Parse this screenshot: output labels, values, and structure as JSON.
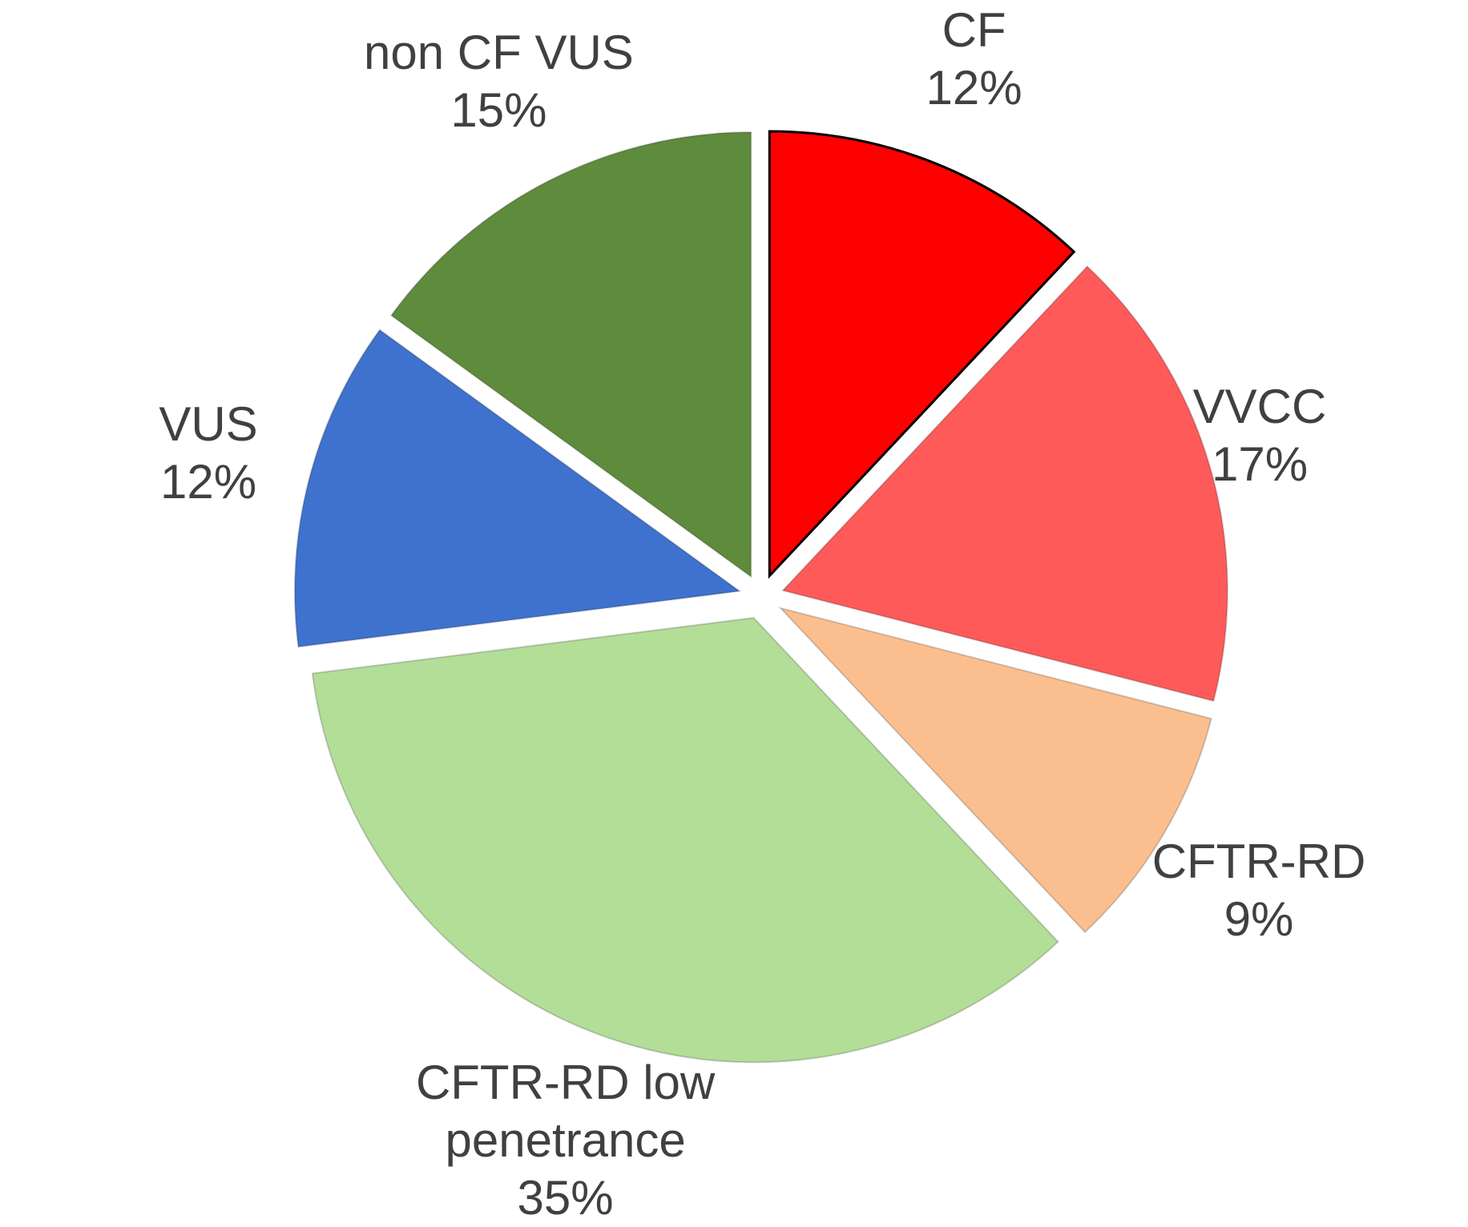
{
  "chart_data": {
    "type": "pie",
    "categories": [
      "CF",
      "VVCC",
      "CFTR-RD",
      "CFTR-RD low penetrance",
      "VUS",
      "non CF VUS"
    ],
    "values": [
      12,
      17,
      9,
      35,
      12,
      15
    ],
    "value_labels": [
      "12%",
      "17%",
      "9%",
      "35%",
      "12%",
      "15%"
    ],
    "colors": [
      "#ff0000",
      "#ff5a5a",
      "#fbbf8f",
      "#b2de98",
      "#3f72cf",
      "#5f8b3c"
    ]
  }
}
